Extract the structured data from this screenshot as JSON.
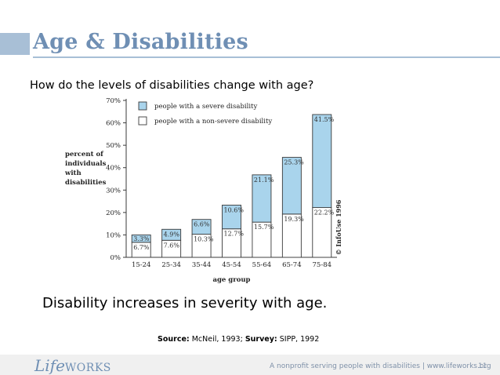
{
  "slide": {
    "title": "Age & Disabilities",
    "question": "How do the levels of disabilities change with age?",
    "conclusion": "Disability increases in severity with age.",
    "source_label": "Source:",
    "source_text": " McNeil, 1993; ",
    "survey_label": "Survey:",
    "survey_text": " SIPP, 1992",
    "accent_color": "#a8bfd6",
    "title_color": "#6f8fb4"
  },
  "footer": {
    "logo_prefix": "Life",
    "logo_suffix": "WORKS",
    "tagline": "A nonprofit serving people with disabilities  |  www.lifeworks.org",
    "page_number": "11"
  },
  "chart_data": {
    "type": "bar",
    "stacked": true,
    "categories": [
      "15-24",
      "25-34",
      "35-44",
      "45-54",
      "55-64",
      "65-74",
      "75-84"
    ],
    "series": [
      {
        "name": "people with a non-severe disability",
        "values": [
          6.7,
          7.6,
          10.3,
          12.7,
          15.7,
          19.3,
          22.2
        ],
        "color": "#ffffff"
      },
      {
        "name": "people with a severe disability",
        "values": [
          3.3,
          4.9,
          6.6,
          10.6,
          21.1,
          25.3,
          41.5
        ],
        "color": "#a9d4ec"
      }
    ],
    "non_severe_labels": [
      "6.7%",
      "7.6%",
      "10.3%",
      "12.7%",
      "15.7%",
      "19.3%",
      "22.2%"
    ],
    "severe_labels": [
      "3.3%",
      "4.9%",
      "6.6%",
      "10.6%",
      "21.1%",
      "25.3%",
      "41.5%"
    ],
    "ylabel_lines": [
      "percent of",
      "individuals",
      "with",
      "disabilities"
    ],
    "xlabel": "age group",
    "ylim": [
      0,
      70
    ],
    "yticks": [
      0,
      10,
      20,
      30,
      40,
      50,
      60,
      70
    ],
    "ytick_labels": [
      "0%",
      "10%",
      "20%",
      "30%",
      "40%",
      "50%",
      "60%",
      "70%"
    ],
    "legend_position": "top-left",
    "copyright": "© InfoUse 1996",
    "grid": false
  }
}
